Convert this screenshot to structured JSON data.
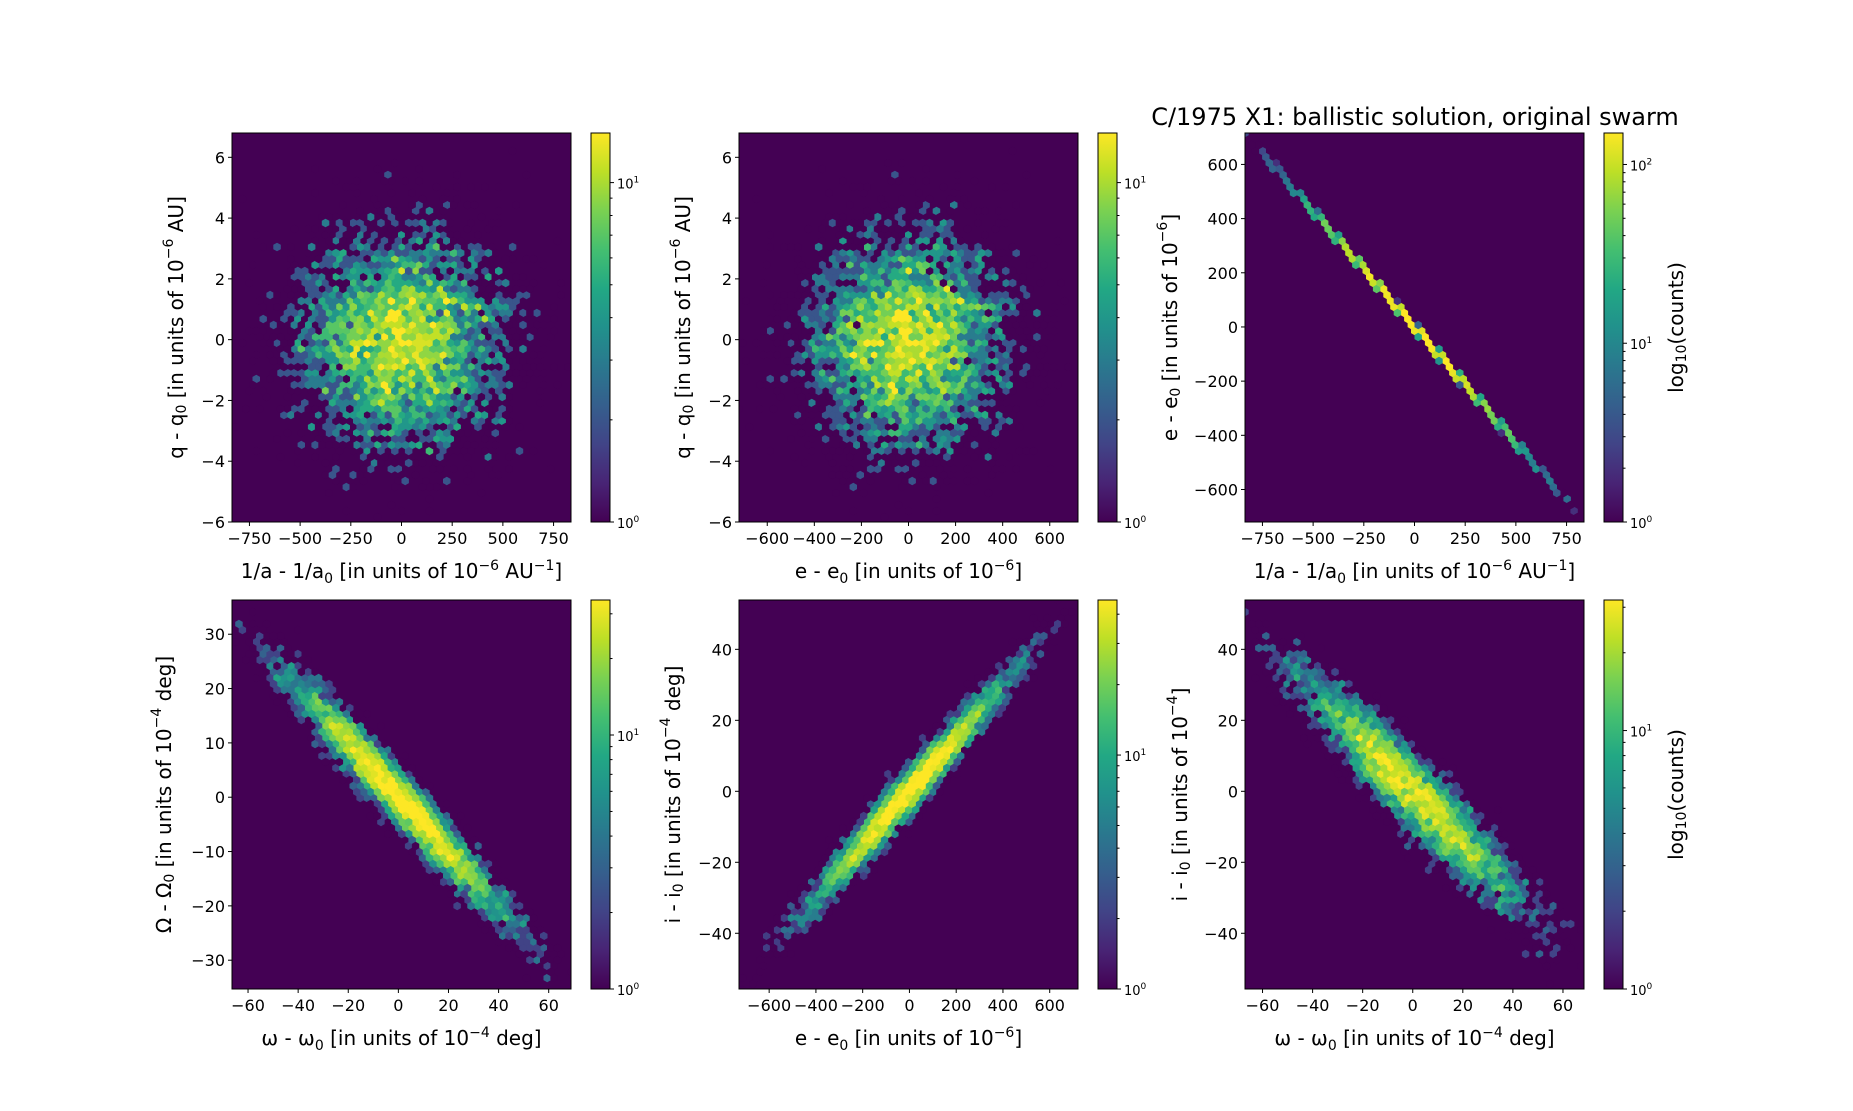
{
  "figure_title": "C/1975 X1:  ballistic solution, original swarm",
  "colormap": [
    "#440154",
    "#482475",
    "#414487",
    "#355f8d",
    "#2a788e",
    "#21918c",
    "#22a884",
    "#44bf70",
    "#7ad151",
    "#bddf26",
    "#fde725"
  ],
  "chart_data": [
    {
      "type": "hexbin",
      "xlabel": [
        {
          "t": "1/a - 1/a"
        },
        {
          "sub": "0"
        },
        {
          "t": " [in units of 10"
        },
        {
          "sup": "−6"
        },
        {
          "t": " AU"
        },
        {
          "sup": "−1"
        },
        {
          "t": "]"
        }
      ],
      "ylabel": [
        {
          "t": "q - q"
        },
        {
          "sub": "0"
        },
        {
          "t": " [in units of 10"
        },
        {
          "sup": "−6"
        },
        {
          "t": " AU]"
        }
      ],
      "xlim": [
        -836,
        836
      ],
      "ylim": [
        -6,
        6.8
      ],
      "xticks": [
        -750,
        -500,
        -250,
        0,
        250,
        500,
        750
      ],
      "xticklabels": [
        "−750",
        "−500",
        "−250",
        "0",
        "250",
        "500",
        "750"
      ],
      "yticks": [
        -6,
        -4,
        -2,
        0,
        2,
        4,
        6
      ],
      "yticklabels": [
        "−6",
        "−4",
        "−2",
        "0",
        "2",
        "4",
        "6"
      ],
      "distribution": {
        "n": 5000,
        "x_std": 260,
        "slope": 0,
        "resid_std": 1.8,
        "seed": 11
      },
      "colorbar": {
        "scale": "log",
        "vmax": 14,
        "ticks": [
          {
            "base": "10",
            "exp": "0",
            "value": 1
          },
          {
            "base": "10",
            "exp": "1",
            "value": 10
          }
        ],
        "label": []
      }
    },
    {
      "type": "hexbin",
      "xlabel": [
        {
          "t": "e - e"
        },
        {
          "sub": "0"
        },
        {
          "t": " [in units of 10"
        },
        {
          "sup": "−6"
        },
        {
          "t": "]"
        }
      ],
      "ylabel": [
        {
          "t": "q - q"
        },
        {
          "sub": "0"
        },
        {
          "t": " [in units of 10"
        },
        {
          "sup": "−6"
        },
        {
          "t": " AU]"
        }
      ],
      "xlim": [
        -720,
        720
      ],
      "ylim": [
        -6,
        6.8
      ],
      "xticks": [
        -600,
        -400,
        -200,
        0,
        200,
        400,
        600
      ],
      "xticklabels": [
        "−600",
        "−400",
        "−200",
        "0",
        "200",
        "400",
        "600"
      ],
      "yticks": [
        -6,
        -4,
        -2,
        0,
        2,
        4,
        6
      ],
      "yticklabels": [
        "−6",
        "−4",
        "−2",
        "0",
        "2",
        "4",
        "6"
      ],
      "distribution": {
        "n": 5000,
        "x_std": 215,
        "slope": 0,
        "resid_std": 1.8,
        "seed": 11
      },
      "colorbar": {
        "scale": "log",
        "vmax": 14,
        "ticks": [
          {
            "base": "10",
            "exp": "0",
            "value": 1
          },
          {
            "base": "10",
            "exp": "1",
            "value": 10
          }
        ],
        "label": []
      }
    },
    {
      "type": "hexbin",
      "xlabel": [
        {
          "t": "1/a - 1/a"
        },
        {
          "sub": "0"
        },
        {
          "t": " [in units of 10"
        },
        {
          "sup": "−6"
        },
        {
          "t": " AU"
        },
        {
          "sup": "−1"
        },
        {
          "t": "]"
        }
      ],
      "ylabel": [
        {
          "t": "e - e"
        },
        {
          "sub": "0"
        },
        {
          "t": " [in units of 10"
        },
        {
          "sup": "−6"
        },
        {
          "t": "]"
        }
      ],
      "xlim": [
        -836,
        836
      ],
      "ylim": [
        -720,
        716
      ],
      "xticks": [
        -750,
        -500,
        -250,
        0,
        250,
        500,
        750
      ],
      "xticklabels": [
        "−750",
        "−500",
        "−250",
        "0",
        "250",
        "500",
        "750"
      ],
      "yticks": [
        -600,
        -400,
        -200,
        0,
        200,
        400,
        600
      ],
      "yticklabels": [
        "−600",
        "−400",
        "−200",
        "0",
        "200",
        "400",
        "600"
      ],
      "distribution": {
        "n": 5000,
        "x_std": 260,
        "slope": -0.855,
        "resid_std": 2,
        "seed": 11
      },
      "colorbar": {
        "scale": "log",
        "vmax": 150,
        "ticks": [
          {
            "base": "10",
            "exp": "0",
            "value": 1
          },
          {
            "base": "10",
            "exp": "1",
            "value": 10
          },
          {
            "base": "10",
            "exp": "2",
            "value": 100
          }
        ],
        "label": [
          {
            "t": "log"
          },
          {
            "sub": "10"
          },
          {
            "t": "(counts)"
          }
        ]
      }
    },
    {
      "type": "hexbin",
      "xlabel": [
        {
          "t": "ω - ω"
        },
        {
          "sub": "0"
        },
        {
          "t": " [in units of 10"
        },
        {
          "sup": "−4"
        },
        {
          "t": " deg]"
        }
      ],
      "ylabel": [
        {
          "t": "Ω - Ω"
        },
        {
          "sub": "0"
        },
        {
          "t": " [in units of 10"
        },
        {
          "sup": "−4"
        },
        {
          "t": " deg]"
        }
      ],
      "xlim": [
        -66.4,
        68.9
      ],
      "ylim": [
        -35.3,
        36.3
      ],
      "xticks": [
        -60,
        -40,
        -20,
        0,
        20,
        40,
        60
      ],
      "xticklabels": [
        "−60",
        "−40",
        "−20",
        "0",
        "20",
        "40",
        "60"
      ],
      "yticks": [
        -30,
        -20,
        -10,
        0,
        10,
        20,
        30
      ],
      "yticklabels": [
        "−30",
        "−20",
        "−10",
        "0",
        "10",
        "20",
        "30"
      ],
      "distribution": {
        "n": 5000,
        "x_std": 22,
        "slope": -0.5,
        "resid_std": 2.6,
        "seed": 23
      },
      "colorbar": {
        "scale": "log",
        "vmax": 34,
        "ticks": [
          {
            "base": "10",
            "exp": "0",
            "value": 1
          },
          {
            "base": "10",
            "exp": "1",
            "value": 10
          }
        ],
        "label": []
      }
    },
    {
      "type": "hexbin",
      "xlabel": [
        {
          "t": "e - e"
        },
        {
          "sub": "0"
        },
        {
          "t": " [in units of 10"
        },
        {
          "sup": "−6"
        },
        {
          "t": "]"
        }
      ],
      "ylabel": [
        {
          "t": "i - i"
        },
        {
          "sub": "0"
        },
        {
          "t": " [in units of 10"
        },
        {
          "sup": "−4"
        },
        {
          "t": " deg]"
        }
      ],
      "xlim": [
        -729,
        721
      ],
      "ylim": [
        -55.7,
        53.9
      ],
      "xticks": [
        -600,
        -400,
        -200,
        0,
        200,
        400,
        600
      ],
      "xticklabels": [
        "−600",
        "−400",
        "−200",
        "0",
        "200",
        "400",
        "600"
      ],
      "yticks": [
        -40,
        -20,
        0,
        20,
        40
      ],
      "yticklabels": [
        "−40",
        "−20",
        "0",
        "20",
        "40"
      ],
      "distribution": {
        "n": 5000,
        "x_std": 215,
        "slope": 0.075,
        "resid_std": 3.2,
        "seed": 37
      },
      "colorbar": {
        "scale": "log",
        "vmax": 46,
        "ticks": [
          {
            "base": "10",
            "exp": "0",
            "value": 1
          },
          {
            "base": "10",
            "exp": "1",
            "value": 10
          }
        ],
        "label": []
      }
    },
    {
      "type": "hexbin",
      "xlabel": [
        {
          "t": "ω - ω"
        },
        {
          "sub": "0"
        },
        {
          "t": " [in units of 10"
        },
        {
          "sup": "−4"
        },
        {
          "t": " deg]"
        }
      ],
      "ylabel": [
        {
          "t": "i - i"
        },
        {
          "sub": "0"
        },
        {
          "t": " [in units of 10"
        },
        {
          "sup": "−4"
        },
        {
          "t": "]"
        }
      ],
      "xlim": [
        -67,
        68.4
      ],
      "ylim": [
        -55.7,
        53.9
      ],
      "xticks": [
        -60,
        -40,
        -20,
        0,
        20,
        40,
        60
      ],
      "xticklabels": [
        "−60",
        "−40",
        "−20",
        "0",
        "20",
        "40",
        "60"
      ],
      "yticks": [
        -40,
        -20,
        0,
        20,
        40
      ],
      "yticklabels": [
        "−40",
        "−20",
        "0",
        "20",
        "40"
      ],
      "distribution": {
        "n": 5000,
        "x_std": 22,
        "slope": -0.7,
        "resid_std": 5.5,
        "seed": 53
      },
      "colorbar": {
        "scale": "log",
        "vmax": 32,
        "ticks": [
          {
            "base": "10",
            "exp": "0",
            "value": 1
          },
          {
            "base": "10",
            "exp": "1",
            "value": 10
          }
        ],
        "label": [
          {
            "t": "log"
          },
          {
            "sub": "10"
          },
          {
            "t": "(counts)"
          }
        ]
      }
    }
  ]
}
